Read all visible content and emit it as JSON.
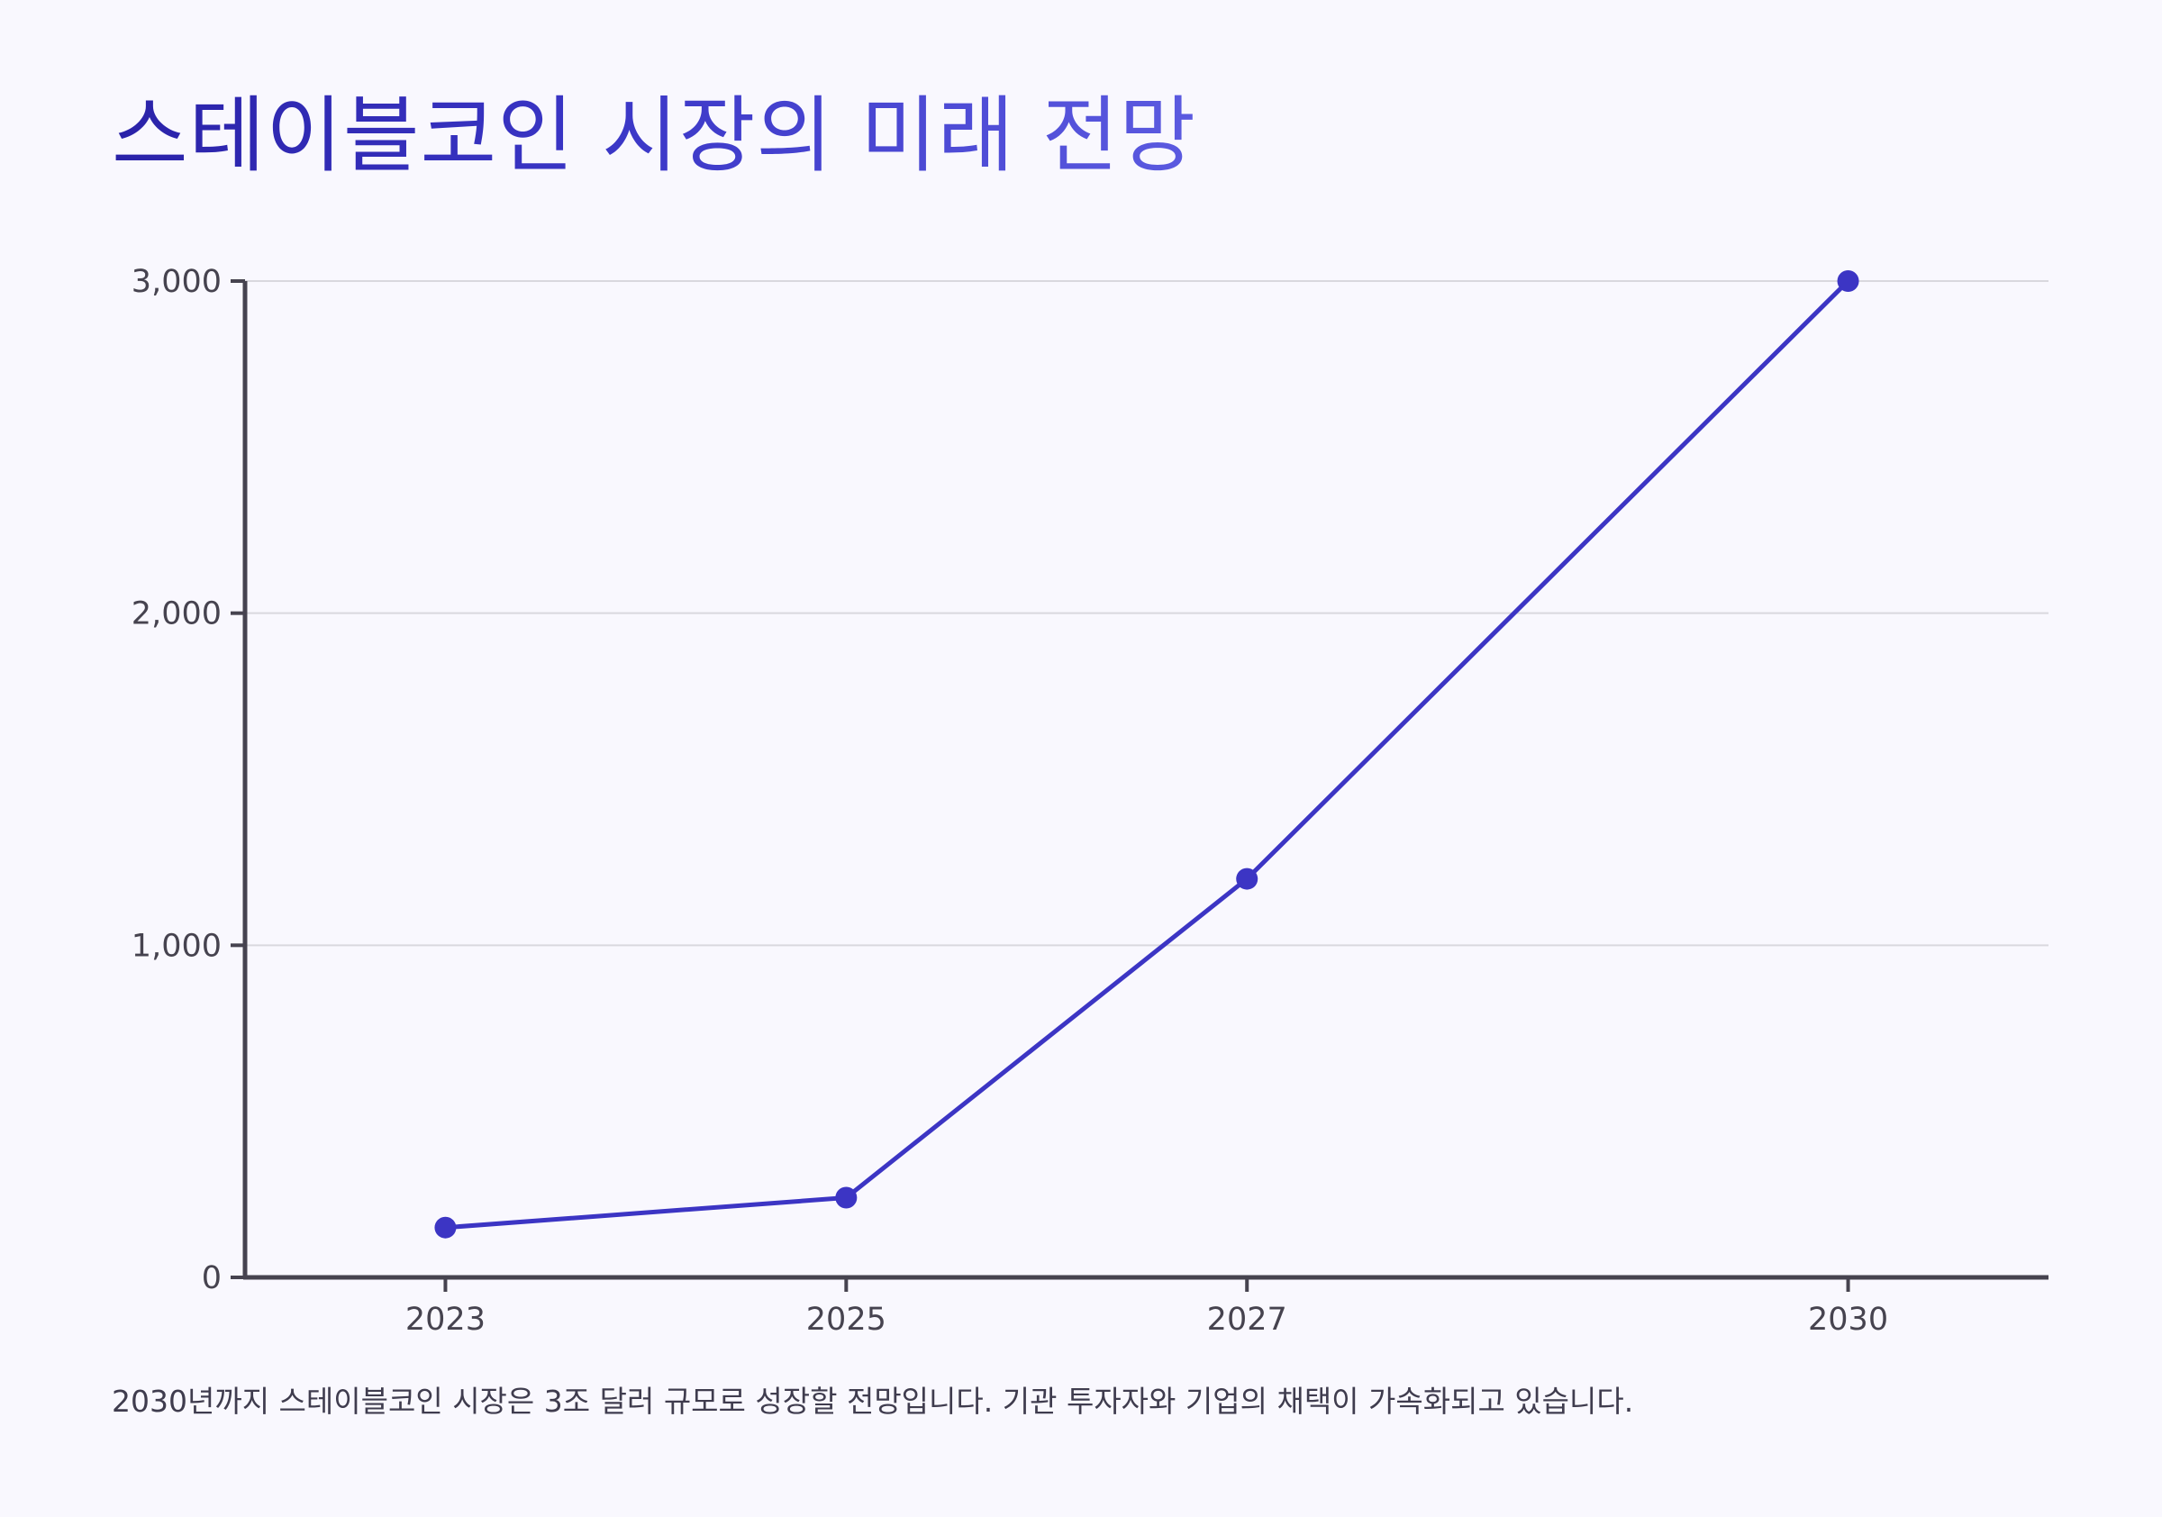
{
  "title": "스테이블코인 시장의 미래 전망",
  "caption": "2030년까지 스테이블코인 시장은 3조 달러 규모로 성장할 전망입니다. 기관 투자자와 기업의 채택이 가속화되고 있습니다.",
  "colors": {
    "background": "#f9f8fe",
    "line": "#3c35c4",
    "axis": "#46434f",
    "grid": "#d9d8de",
    "tick_text": "#46434f"
  },
  "chart_data": {
    "type": "line",
    "x": [
      2023,
      2025,
      2027,
      2030
    ],
    "x_ticks": [
      "2023",
      "2025",
      "2027",
      "2030"
    ],
    "series": [
      {
        "values": [
          150,
          240,
          1200,
          3000
        ]
      }
    ],
    "y_ticks": [
      0,
      1000,
      2000,
      3000
    ],
    "y_tick_labels": [
      "0",
      "1,000",
      "2,000",
      "3,000"
    ],
    "xlim": [
      2022,
      2031
    ],
    "ylim": [
      0,
      3000
    ],
    "grid": true,
    "xlabel": "",
    "ylabel": ""
  }
}
